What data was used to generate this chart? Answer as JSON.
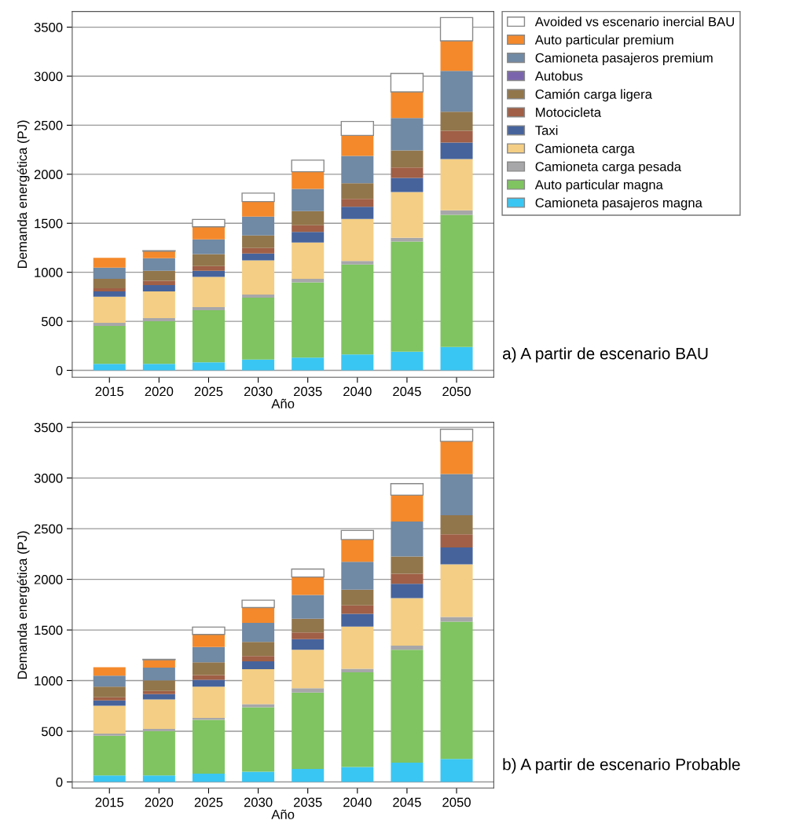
{
  "chart_data": [
    {
      "type": "bar",
      "stacked": true,
      "ylabel": "Demanda energética (PJ)",
      "xlabel": "Año",
      "categories": [
        "2015",
        "2020",
        "2025",
        "2030",
        "2035",
        "2040",
        "2045",
        "2050"
      ],
      "ylim": [
        -70,
        3660
      ],
      "yticks": [
        0,
        500,
        1000,
        1500,
        2000,
        2500,
        3000,
        3500
      ],
      "grid": "y",
      "legend": "top right",
      "annotations": [
        "a) A partir de escenario BAU"
      ],
      "series": [
        {
          "name": "Camioneta pasajeros magna",
          "color": "#3ac6f2",
          "values": [
            67,
            67,
            83,
            110,
            131,
            163,
            190,
            238
          ]
        },
        {
          "name": "Auto particular magna",
          "color": "#7fc460",
          "values": [
            385,
            433,
            530,
            632,
            766,
            916,
            1124,
            1349
          ]
        },
        {
          "name": "Camioneta carga pesada",
          "color": "#a7a7a9",
          "values": [
            33,
            33,
            32,
            32,
            37,
            37,
            38,
            46
          ]
        },
        {
          "name": "Camioneta carga",
          "color": "#f4ce84",
          "values": [
            267,
            273,
            308,
            348,
            370,
            429,
            466,
            522
          ]
        },
        {
          "name": "Taxi",
          "color": "#46639c",
          "values": [
            54,
            64,
            62,
            69,
            107,
            123,
            144,
            169
          ]
        },
        {
          "name": "Motocicleta",
          "color": "#a05f46",
          "values": [
            32,
            43,
            48,
            56,
            69,
            80,
            107,
            120
          ]
        },
        {
          "name": "Camión carga ligera",
          "color": "#92764b",
          "values": [
            96,
            102,
            123,
            129,
            145,
            161,
            174,
            193
          ]
        },
        {
          "name": "Autobus",
          "color": "#7a65ad",
          "values": [
            0,
            0,
            0,
            0,
            0,
            0,
            0,
            0
          ]
        },
        {
          "name": "Camioneta pasajeros premium",
          "color": "#7089a4",
          "values": [
            113,
            128,
            150,
            193,
            225,
            278,
            330,
            417
          ]
        },
        {
          "name": "Auto particular premium",
          "color": "#f4892b",
          "values": [
            101,
            72,
            128,
            152,
            176,
            209,
            267,
            306
          ]
        },
        {
          "name": "Avoided vs escenario inercial BAU",
          "color": "#ffffff",
          "values": [
            0,
            5,
            75,
            86,
            118,
            142,
            188,
            238
          ]
        }
      ]
    },
    {
      "type": "bar",
      "stacked": true,
      "ylabel": "Demanda energética (PJ)",
      "xlabel": "Año",
      "categories": [
        "2015",
        "2020",
        "2025",
        "2030",
        "2035",
        "2040",
        "2045",
        "2050"
      ],
      "ylim": [
        -60,
        3550
      ],
      "yticks": [
        0,
        500,
        1000,
        1500,
        2000,
        2500,
        3000,
        3500
      ],
      "grid": "y",
      "annotations": [
        "b) A partir de escenario Probable"
      ],
      "series": [
        {
          "color": "#3ac6f2",
          "values": [
            65,
            65,
            81,
            102,
            128,
            148,
            190,
            227
          ]
        },
        {
          "color": "#7fc460",
          "values": [
            391,
            438,
            531,
            635,
            755,
            933,
            1115,
            1354
          ]
        },
        {
          "color": "#a7a7a9",
          "values": [
            21,
            20,
            21,
            31,
            41,
            36,
            41,
            47
          ]
        },
        {
          "color": "#f4ce84",
          "values": [
            276,
            292,
            307,
            344,
            381,
            417,
            469,
            520
          ]
        },
        {
          "color": "#46639c",
          "values": [
            52,
            52,
            68,
            78,
            104,
            125,
            141,
            167
          ]
        },
        {
          "color": "#a05f46",
          "values": [
            31,
            31,
            47,
            52,
            67,
            83,
            99,
            130
          ]
        },
        {
          "color": "#92764b",
          "values": [
            104,
            105,
            125,
            141,
            136,
            156,
            171,
            188
          ]
        },
        {
          "color": "#7a65ad",
          "values": [
            0,
            0,
            0,
            0,
            0,
            0,
            0,
            0
          ]
        },
        {
          "color": "#7089a4",
          "values": [
            109,
            125,
            151,
            187,
            234,
            276,
            344,
            406
          ]
        },
        {
          "color": "#f4892b",
          "values": [
            84,
            78,
            125,
            151,
            177,
            219,
            261,
            323
          ]
        },
        {
          "color": "#ffffff",
          "values": [
            0,
            5,
            73,
            73,
            78,
            89,
            114,
            120
          ]
        }
      ]
    }
  ]
}
